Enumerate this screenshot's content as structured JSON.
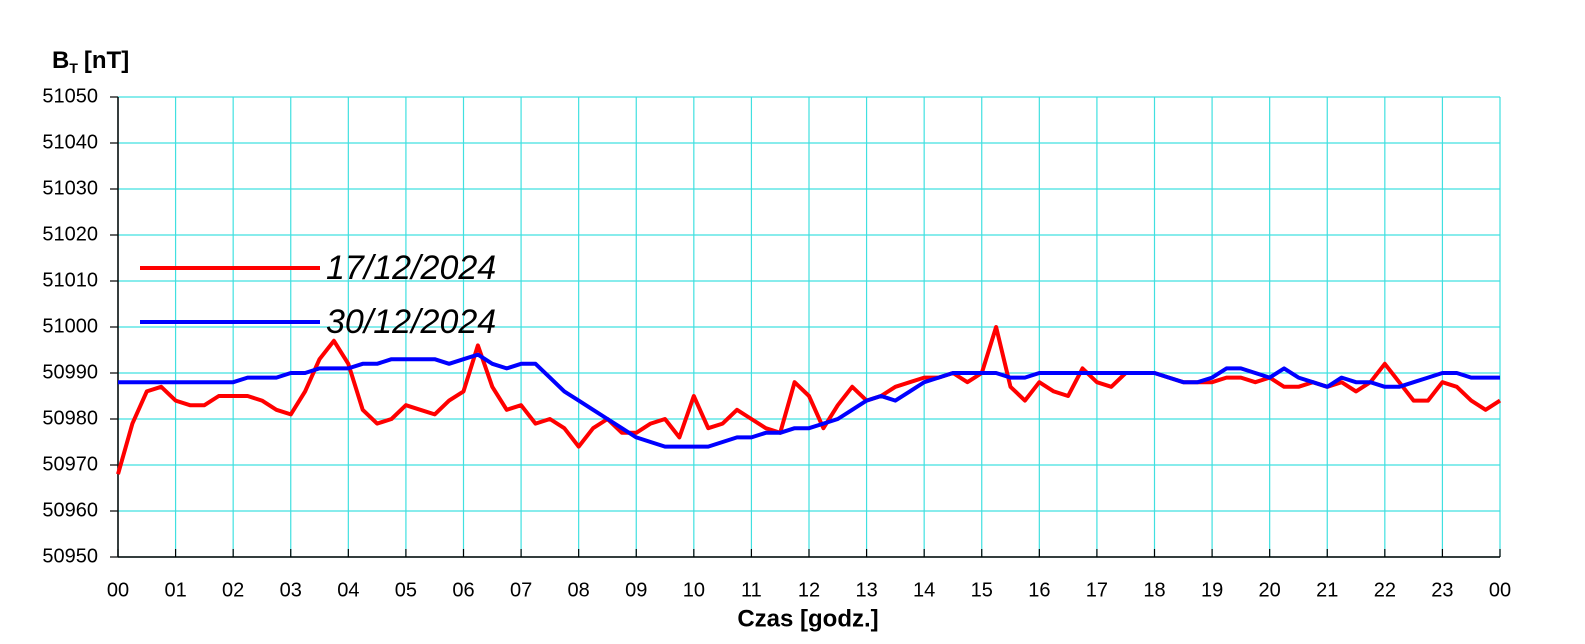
{
  "chart_data": {
    "type": "line",
    "ylabel": {
      "main": "B",
      "sub": "T",
      "unit": "[nT]"
    },
    "xlabel": "Czas [godz.]",
    "x": [
      0,
      0.25,
      0.5,
      0.75,
      1,
      1.25,
      1.5,
      1.75,
      2,
      2.25,
      2.5,
      2.75,
      3,
      3.25,
      3.5,
      3.75,
      4,
      4.25,
      4.5,
      4.75,
      5,
      5.25,
      5.5,
      5.75,
      6,
      6.25,
      6.5,
      6.75,
      7,
      7.25,
      7.5,
      7.75,
      8,
      8.25,
      8.5,
      8.75,
      9,
      9.25,
      9.5,
      9.75,
      10,
      10.25,
      10.5,
      10.75,
      11,
      11.25,
      11.5,
      11.75,
      12,
      12.25,
      12.5,
      12.75,
      13,
      13.25,
      13.5,
      13.75,
      14,
      14.25,
      14.5,
      14.75,
      15,
      15.25,
      15.5,
      15.75,
      16,
      16.25,
      16.5,
      16.75,
      17,
      17.25,
      17.5,
      17.75,
      18,
      18.25,
      18.5,
      18.75,
      19,
      19.25,
      19.5,
      19.75,
      20,
      20.25,
      20.5,
      20.75,
      21,
      21.25,
      21.5,
      21.75,
      22,
      22.25,
      22.5,
      22.75,
      23,
      23.25,
      23.5,
      23.75,
      24
    ],
    "series": [
      {
        "name": "17/12/2024",
        "color": "#ff0000",
        "values": [
          50968,
          50979,
          50986,
          50987,
          50984,
          50983,
          50983,
          50985,
          50985,
          50985,
          50984,
          50982,
          50981,
          50986,
          50993,
          50997,
          50992,
          50982,
          50979,
          50980,
          50983,
          50982,
          50981,
          50984,
          50986,
          50996,
          50987,
          50982,
          50983,
          50979,
          50980,
          50978,
          50974,
          50978,
          50980,
          50977,
          50977,
          50979,
          50980,
          50976,
          50985,
          50978,
          50979,
          50982,
          50980,
          50978,
          50977,
          50988,
          50985,
          50978,
          50983,
          50987,
          50984,
          50985,
          50987,
          50988,
          50989,
          50989,
          50990,
          50988,
          50990,
          51000,
          50987,
          50984,
          50988,
          50986,
          50985,
          50991,
          50988,
          50987,
          50990,
          50990,
          50990,
          50989,
          50988,
          50988,
          50988,
          50989,
          50989,
          50988,
          50989,
          50987,
          50987,
          50988,
          50987,
          50988,
          50986,
          50988,
          50992,
          50988,
          50984,
          50984,
          50988,
          50987,
          50984,
          50982,
          50984
        ]
      },
      {
        "name": "30/12/2024",
        "color": "#0000ff",
        "values": [
          50988,
          50988,
          50988,
          50988,
          50988,
          50988,
          50988,
          50988,
          50988,
          50989,
          50989,
          50989,
          50990,
          50990,
          50991,
          50991,
          50991,
          50992,
          50992,
          50993,
          50993,
          50993,
          50993,
          50992,
          50993,
          50994,
          50992,
          50991,
          50992,
          50992,
          50989,
          50986,
          50984,
          50982,
          50980,
          50978,
          50976,
          50975,
          50974,
          50974,
          50974,
          50974,
          50975,
          50976,
          50976,
          50977,
          50977,
          50978,
          50978,
          50979,
          50980,
          50982,
          50984,
          50985,
          50984,
          50986,
          50988,
          50989,
          50990,
          50990,
          50990,
          50990,
          50989,
          50989,
          50990,
          50990,
          50990,
          50990,
          50990,
          50990,
          50990,
          50990,
          50990,
          50989,
          50988,
          50988,
          50989,
          50991,
          50991,
          50990,
          50989,
          50991,
          50989,
          50988,
          50987,
          50989,
          50988,
          50988,
          50987,
          50987,
          50988,
          50989,
          50990,
          50990,
          50989,
          50989,
          50989
        ]
      }
    ],
    "xlim": [
      0,
      24
    ],
    "xticks": [
      {
        "value": 0,
        "label": "00"
      },
      {
        "value": 1,
        "label": "01"
      },
      {
        "value": 2,
        "label": "02"
      },
      {
        "value": 3,
        "label": "03"
      },
      {
        "value": 4,
        "label": "04"
      },
      {
        "value": 5,
        "label": "05"
      },
      {
        "value": 6,
        "label": "06"
      },
      {
        "value": 7,
        "label": "07"
      },
      {
        "value": 8,
        "label": "08"
      },
      {
        "value": 9,
        "label": "09"
      },
      {
        "value": 10,
        "label": "10"
      },
      {
        "value": 11,
        "label": "11"
      },
      {
        "value": 12,
        "label": "12"
      },
      {
        "value": 13,
        "label": "13"
      },
      {
        "value": 14,
        "label": "14"
      },
      {
        "value": 15,
        "label": "15"
      },
      {
        "value": 16,
        "label": "16"
      },
      {
        "value": 17,
        "label": "17"
      },
      {
        "value": 18,
        "label": "18"
      },
      {
        "value": 19,
        "label": "19"
      },
      {
        "value": 20,
        "label": "20"
      },
      {
        "value": 21,
        "label": "21"
      },
      {
        "value": 22,
        "label": "22"
      },
      {
        "value": 23,
        "label": "23"
      },
      {
        "value": 24,
        "label": "00"
      }
    ],
    "ylim": [
      50950,
      51050
    ],
    "yticks": [
      50950,
      50960,
      50970,
      50980,
      50990,
      51000,
      51010,
      51020,
      51030,
      51040,
      51050
    ],
    "grid": true,
    "grid_color": "#40e0e0"
  }
}
